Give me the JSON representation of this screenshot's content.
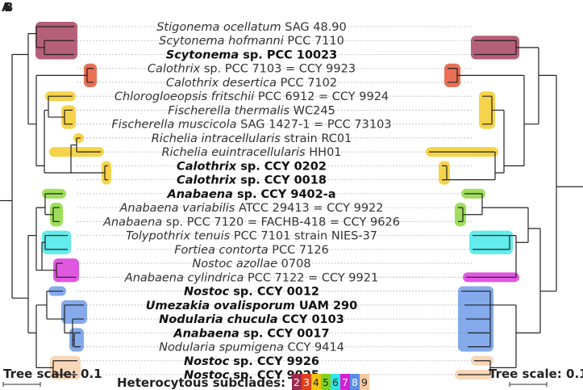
{
  "panel_labels": [
    "A",
    "B"
  ],
  "taxa": [
    {
      "id": 1,
      "bold": false,
      "parts": [
        {
          "t": "Stigonema ocellatum",
          "i": true
        },
        {
          "t": " SAG 48.90",
          "i": false
        }
      ]
    },
    {
      "id": 2,
      "bold": false,
      "parts": [
        {
          "t": "Scytonema hofmanni",
          "i": true
        },
        {
          "t": " PCC 7110",
          "i": false
        }
      ]
    },
    {
      "id": 3,
      "bold": true,
      "parts": [
        {
          "t": "Scytonema",
          "i": true
        },
        {
          "t": " sp. PCC 10023",
          "i": false
        }
      ]
    },
    {
      "id": 4,
      "bold": false,
      "parts": [
        {
          "t": "Calothrix",
          "i": true
        },
        {
          "t": " sp. PCC 7103 = CCY 9923",
          "i": false
        }
      ]
    },
    {
      "id": 5,
      "bold": false,
      "parts": [
        {
          "t": "Calothrix desertica",
          "i": true
        },
        {
          "t": " PCC 7102",
          "i": false
        }
      ]
    },
    {
      "id": 6,
      "bold": false,
      "parts": [
        {
          "t": "Chlorogloeopsis fritschii",
          "i": true
        },
        {
          "t": " PCC 6912 = CCY 9924",
          "i": false
        }
      ]
    },
    {
      "id": 7,
      "bold": false,
      "parts": [
        {
          "t": "Fischerella thermalis",
          "i": true
        },
        {
          "t": " WC245",
          "i": false
        }
      ]
    },
    {
      "id": 8,
      "bold": false,
      "parts": [
        {
          "t": "Fischerella muscicola",
          "i": true
        },
        {
          "t": " SAG 1427-1 = PCC 73103",
          "i": false
        }
      ]
    },
    {
      "id": 9,
      "bold": false,
      "parts": [
        {
          "t": "Richelia intracellularis",
          "i": true
        },
        {
          "t": " strain RC01",
          "i": false
        }
      ]
    },
    {
      "id": 10,
      "bold": false,
      "parts": [
        {
          "t": "Richelia euintracellularis",
          "i": true
        },
        {
          "t": " HH01",
          "i": false
        }
      ]
    },
    {
      "id": 11,
      "bold": true,
      "parts": [
        {
          "t": "Calothrix",
          "i": true
        },
        {
          "t": " sp. CCY 0202",
          "i": false
        }
      ]
    },
    {
      "id": 12,
      "bold": true,
      "parts": [
        {
          "t": "Calothrix",
          "i": true
        },
        {
          "t": " sp. CCY 0018",
          "i": false
        }
      ]
    },
    {
      "id": 13,
      "bold": true,
      "parts": [
        {
          "t": "Anabaena",
          "i": true
        },
        {
          "t": " sp. CCY 9402-a",
          "i": false
        }
      ]
    },
    {
      "id": 14,
      "bold": false,
      "parts": [
        {
          "t": "Anabaena variabilis",
          "i": true
        },
        {
          "t": " ATCC 29413 = CCY 9922",
          "i": false
        }
      ]
    },
    {
      "id": 15,
      "bold": false,
      "parts": [
        {
          "t": "Anabaena",
          "i": true
        },
        {
          "t": " sp. PCC 7120 = FACHB-418 = CCY 9626",
          "i": false
        }
      ]
    },
    {
      "id": 16,
      "bold": false,
      "parts": [
        {
          "t": "Tolypothrix tenuis",
          "i": true
        },
        {
          "t": " PCC 7101 strain NIES-37",
          "i": false
        }
      ]
    },
    {
      "id": 17,
      "bold": false,
      "parts": [
        {
          "t": "Fortiea contorta",
          "i": true
        },
        {
          "t": " PCC 7126",
          "i": false
        }
      ]
    },
    {
      "id": 18,
      "bold": false,
      "parts": [
        {
          "t": "Nostoc azollae",
          "i": true
        },
        {
          "t": " 0708",
          "i": false
        }
      ]
    },
    {
      "id": 19,
      "bold": false,
      "parts": [
        {
          "t": "Anabaena cylindrica",
          "i": true
        },
        {
          "t": " PCC 7122 = CCY 9921",
          "i": false
        }
      ]
    },
    {
      "id": 20,
      "bold": true,
      "parts": [
        {
          "t": "Nostoc",
          "i": true
        },
        {
          "t": " sp. CCY 0012",
          "i": false
        }
      ]
    },
    {
      "id": 21,
      "bold": true,
      "parts": [
        {
          "t": "Umezakia ovalisporum",
          "i": true
        },
        {
          "t": " UAM 290",
          "i": false
        }
      ]
    },
    {
      "id": 22,
      "bold": true,
      "parts": [
        {
          "t": "Nodularia chucula",
          "i": true
        },
        {
          "t": " CCY 0103",
          "i": false
        }
      ]
    },
    {
      "id": 23,
      "bold": true,
      "parts": [
        {
          "t": "Anabaena",
          "i": true
        },
        {
          "t": " sp. CCY 0017",
          "i": false
        }
      ]
    },
    {
      "id": 24,
      "bold": false,
      "parts": [
        {
          "t": "Nodularia spumigena",
          "i": true
        },
        {
          "t": " CCY 9414",
          "i": false
        }
      ]
    },
    {
      "id": 25,
      "bold": true,
      "parts": [
        {
          "t": "Nostoc",
          "i": true
        },
        {
          "t": " sp. CCY 9926",
          "i": false
        }
      ]
    },
    {
      "id": 26,
      "bold": true,
      "parts": [
        {
          "t": "Nostoc",
          "i": true
        },
        {
          "t": " sp. CCY 9925",
          "i": false
        }
      ]
    }
  ],
  "scale_left": {
    "label": "Tree scale: 0.1"
  },
  "scale_right": {
    "label": "Tree scale: 0.1"
  },
  "legend": {
    "title": "Heterocytous subclades:",
    "items": [
      {
        "label": "2",
        "color": "#9e2a4e"
      },
      {
        "label": "3",
        "color": "#e0401e"
      },
      {
        "label": "4",
        "color": "#f1c40f"
      },
      {
        "label": "5",
        "color": "#7ed321"
      },
      {
        "label": "6",
        "color": "#2ee6e6"
      },
      {
        "label": "7",
        "color": "#d61fd6"
      },
      {
        "label": "8",
        "color": "#5b8ee6"
      },
      {
        "label": "9",
        "color": "#f6c9a0"
      }
    ]
  },
  "colors": {
    "clade2": "#9e2a4e",
    "clade3": "#e0401e",
    "clade4": "#f1c40f",
    "clade5": "#7ed321",
    "clade6": "#2ee6e6",
    "clade7": "#d61fd6",
    "clade8": "#5b8ee6",
    "clade9": "#f6c9a0",
    "branch": "#222222",
    "dash": "#bbbbbb"
  }
}
